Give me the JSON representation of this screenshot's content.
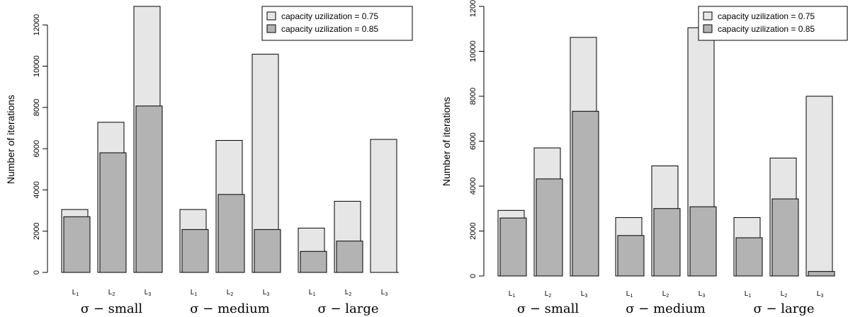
{
  "colors": {
    "light": "#e6e6e6",
    "dark": "#b3b3b3",
    "stroke": "#000000"
  },
  "chart_data": [
    {
      "type": "bar",
      "ylabel": "Number of iterations",
      "ylim": [
        0,
        12900
      ],
      "yticks": [
        0,
        2000,
        4000,
        6000,
        8000,
        10000,
        12000
      ],
      "groups": [
        "σ − small",
        "σ − medium",
        "σ − large"
      ],
      "categories": [
        "L1",
        "L2",
        "L3"
      ],
      "legend_position": "top-right",
      "series": [
        {
          "name": "capacity uzilization = 0.75",
          "values": [
            [
              3050,
              7280,
              12900
            ],
            [
              3050,
              6400,
              10580
            ],
            [
              2150,
              3450,
              6450
            ]
          ]
        },
        {
          "name": "capacity uzilization = 0.85",
          "values": [
            [
              2700,
              5800,
              8070
            ],
            [
              2080,
              3780,
              2080
            ],
            [
              1020,
              1520,
              0
            ]
          ]
        }
      ]
    },
    {
      "type": "bar",
      "ylabel": "Number of iterations",
      "ylim": [
        0,
        12000
      ],
      "yticks": [
        0,
        2000,
        4000,
        6000,
        8000,
        10000,
        12000
      ],
      "groups": [
        "σ − small",
        "σ − medium",
        "σ − large"
      ],
      "categories": [
        "L1",
        "L2",
        "L3"
      ],
      "legend_position": "top-right",
      "series": [
        {
          "name": "capacity uzilization = 0.75",
          "values": [
            [
              2920,
              5700,
              10620
            ],
            [
              2600,
              4900,
              11050
            ],
            [
              2600,
              5250,
              8000
            ]
          ]
        },
        {
          "name": "capacity uzilization = 0.85",
          "values": [
            [
              2580,
              4320,
              7330
            ],
            [
              1800,
              3000,
              3080
            ],
            [
              1700,
              3430,
              200
            ]
          ]
        }
      ]
    }
  ]
}
